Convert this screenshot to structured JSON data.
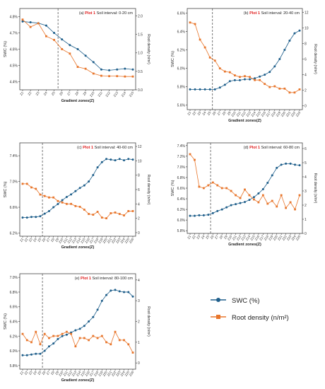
{
  "colors": {
    "swc": "#1f5f8b",
    "root": "#e8762c",
    "plot_label": "#e02020",
    "axis": "#444444",
    "divider": "#555555"
  },
  "legend": {
    "swc_label": "SWC (%)",
    "root_label": "Root density (n/m²)"
  },
  "chart_data": [
    {
      "type": "line",
      "panel": "(a)",
      "plot_word": "Plot 1",
      "interval": "Soil interval: 0-20 cm",
      "xlabel": "Gradient zones(Z)",
      "ylabel": "SWC (%)",
      "y2label": "Root density (n/m²)",
      "categories": [
        "Z1",
        "Z2",
        "Z3",
        "Z4",
        "Z5",
        "Z6",
        "Z7",
        "Z8",
        "Z9",
        "Z10",
        "Z11",
        "Z12",
        "Z13",
        "Z14",
        "Z15"
      ],
      "divider_after": "Z5",
      "ylim": [
        4.35,
        4.85
      ],
      "yticks": [
        4.4,
        4.5,
        4.6,
        4.7,
        4.8
      ],
      "ytick_labels": [
        "4.4%",
        "4.5%",
        "4.6%",
        "4.7%",
        "4.8%"
      ],
      "y2lim": [
        0,
        2.2
      ],
      "y2ticks": [
        0,
        0.5,
        1.0,
        1.5,
        2.0
      ],
      "y2tick_labels": [
        "0.0",
        "0.5",
        "1.0",
        "1.5",
        "2.0"
      ],
      "series": [
        {
          "name": "SWC (%)",
          "axis": "left",
          "values": [
            4.77,
            4.765,
            4.76,
            4.745,
            4.7,
            4.66,
            4.625,
            4.6,
            4.56,
            4.52,
            4.475,
            4.47,
            4.475,
            4.48,
            4.475
          ]
        },
        {
          "name": "Root density (n/m²)",
          "axis": "right",
          "values": [
            1.9,
            1.7,
            1.8,
            1.45,
            1.35,
            1.1,
            0.98,
            0.62,
            0.57,
            0.44,
            0.38,
            0.37,
            0.37,
            0.36,
            0.36
          ]
        }
      ]
    },
    {
      "type": "line",
      "panel": "(b)",
      "plot_word": "Plot 1",
      "interval": "Soil interval: 20-40 cm",
      "xlabel": "Gradient zones(Z)",
      "ylabel": "SWC (%)",
      "y2label": "Root density (n/m²)",
      "categories": [
        "Z1",
        "Z2",
        "Z3",
        "Z4",
        "Z5",
        "Z6",
        "Z7",
        "Z8",
        "Z9",
        "Z10",
        "Z11",
        "Z12",
        "Z13",
        "Z14",
        "Z15",
        "Z16",
        "Z17",
        "Z18",
        "Z19",
        "Z20",
        "Z21",
        "Z22",
        "Z23"
      ],
      "divider_after": "Z5",
      "ylim": [
        5.55,
        6.65
      ],
      "yticks": [
        5.6,
        5.8,
        6.0,
        6.2,
        6.4,
        6.6
      ],
      "ytick_labels": [
        "5.6%",
        "5.8%",
        "6.0%",
        "6.2%",
        "6.4%",
        "6.6%"
      ],
      "y2lim": [
        -0.5,
        12.5
      ],
      "y2ticks": [
        0,
        2,
        4,
        6,
        8,
        10,
        12
      ],
      "y2tick_labels": [
        "0",
        "2",
        "4",
        "6",
        "8",
        "10",
        "12"
      ],
      "series": [
        {
          "name": "SWC (%)",
          "axis": "left",
          "values": [
            5.77,
            5.77,
            5.77,
            5.77,
            5.77,
            5.77,
            5.79,
            5.82,
            5.86,
            5.87,
            5.87,
            5.88,
            5.88,
            5.89,
            5.91,
            5.93,
            5.96,
            6.02,
            6.1,
            6.2,
            6.3,
            6.38,
            6.41
          ]
        },
        {
          "name": "Root density (n/m²)",
          "axis": "right",
          "values": [
            10.7,
            10.5,
            8.5,
            7.5,
            6.2,
            5.8,
            4.8,
            4.4,
            4.3,
            3.9,
            3.7,
            3.8,
            3.7,
            3.3,
            3.3,
            2.8,
            2.4,
            2.5,
            2.2,
            2.2,
            1.7,
            1.7,
            2.1
          ]
        }
      ]
    },
    {
      "type": "line",
      "panel": "(c)",
      "plot_word": "Plot 1",
      "interval": "Soil interval: 40-60 cm",
      "xlabel": "Gradient zones(Z)",
      "ylabel": "SWC (%)",
      "y2label": "Root density (n/m²)",
      "categories": [
        "Z1",
        "Z2",
        "Z3",
        "Z4",
        "Z5",
        "Z6",
        "Z7",
        "Z8",
        "Z9",
        "Z10",
        "Z11",
        "Z12",
        "Z13",
        "Z14",
        "Z15",
        "Z16",
        "Z17",
        "Z18",
        "Z19",
        "Z20",
        "Z21",
        "Z22",
        "Z23",
        "Z24",
        "Z25",
        "Z26"
      ],
      "divider_after": "Z5",
      "ylim": [
        6.15,
        7.6
      ],
      "yticks": [
        6.2,
        6.6,
        7.0,
        7.4
      ],
      "ytick_labels": [
        "6.2%",
        "6.6%",
        "7.0%",
        "7.4%"
      ],
      "y2lim": [
        -0.5,
        12.5
      ],
      "y2ticks": [
        0,
        2,
        4,
        6,
        8,
        10,
        12
      ],
      "y2tick_labels": [
        "0",
        "2",
        "4",
        "6",
        "8",
        "10",
        "12"
      ],
      "series": [
        {
          "name": "SWC (%)",
          "axis": "left",
          "values": [
            6.44,
            6.44,
            6.45,
            6.45,
            6.46,
            6.5,
            6.54,
            6.6,
            6.65,
            6.71,
            6.76,
            6.8,
            6.85,
            6.9,
            6.94,
            7.0,
            7.1,
            7.22,
            7.3,
            7.35,
            7.34,
            7.33,
            7.35,
            7.33,
            7.35,
            7.34
          ]
        },
        {
          "name": "Root density (n/m²)",
          "axis": "right",
          "values": [
            6.8,
            6.8,
            6.3,
            6.1,
            5.3,
            5.1,
            4.9,
            4.9,
            4.4,
            4.2,
            4.0,
            4.0,
            3.7,
            3.6,
            3.2,
            2.6,
            2.5,
            2.9,
            2.1,
            2.0,
            2.7,
            2.8,
            2.6,
            2.4,
            3.0,
            3.0
          ]
        }
      ]
    },
    {
      "type": "line",
      "panel": "(d)",
      "plot_word": "Plot 1",
      "interval": "Soil interval: 60-80 cm",
      "xlabel": "Gradient zones(Z)",
      "ylabel": "SWC (%)",
      "y2label": "Root density (n/m²)",
      "categories": [
        "Z1",
        "Z2",
        "Z3",
        "Z4",
        "Z5",
        "Z6",
        "Z7",
        "Z8",
        "Z9",
        "Z10",
        "Z11",
        "Z12",
        "Z13",
        "Z14",
        "Z15",
        "Z16",
        "Z17",
        "Z18",
        "Z19",
        "Z20",
        "Z21",
        "Z22",
        "Z23",
        "Z24",
        "Z25"
      ],
      "divider_after": "Z5",
      "ylim": [
        5.75,
        7.45
      ],
      "yticks": [
        5.8,
        6.0,
        6.2,
        6.4,
        6.6,
        6.8,
        7.0,
        7.2,
        7.4
      ],
      "ytick_labels": [
        "5.8%",
        "6.0%",
        "6.2%",
        "6.4%",
        "6.6%",
        "6.8%",
        "7.0%",
        "7.2%",
        "7.4%"
      ],
      "y2lim": [
        0,
        6.4
      ],
      "y2ticks": [
        0,
        1,
        2,
        3,
        4,
        5,
        6
      ],
      "y2tick_labels": [
        "0",
        "1",
        "2",
        "3",
        "4",
        "5",
        "6"
      ],
      "series": [
        {
          "name": "SWC (%)",
          "axis": "left",
          "values": [
            6.08,
            6.08,
            6.09,
            6.09,
            6.1,
            6.13,
            6.17,
            6.2,
            6.24,
            6.28,
            6.3,
            6.32,
            6.34,
            6.38,
            6.43,
            6.5,
            6.58,
            6.7,
            6.84,
            6.98,
            7.04,
            7.06,
            7.06,
            7.04,
            7.03
          ]
        },
        {
          "name": "Root density (n/m²)",
          "axis": "right",
          "values": [
            5.6,
            5.2,
            3.3,
            3.2,
            3.4,
            3.6,
            3.4,
            3.2,
            3.2,
            3.0,
            2.7,
            2.5,
            3.1,
            2.7,
            2.4,
            2.2,
            2.7,
            2.1,
            2.3,
            1.9,
            2.7,
            1.8,
            2.2,
            1.7,
            2.7
          ]
        }
      ]
    },
    {
      "type": "line",
      "panel": "(e)",
      "plot_word": "Plot 1",
      "interval": "Soil interval: 80-100 cm",
      "xlabel": "Gradient zones(Z)",
      "ylabel": "SWC (%)",
      "y2label": "Root density (n/m²)",
      "categories": [
        "Z1",
        "Z2",
        "Z3",
        "Z4",
        "Z5",
        "Z6",
        "Z7",
        "Z8",
        "Z9",
        "Z10",
        "Z11",
        "Z12",
        "Z13",
        "Z14",
        "Z15",
        "Z16",
        "Z17",
        "Z18",
        "Z19",
        "Z20",
        "Z21",
        "Z22",
        "Z23",
        "Z24",
        "Z25",
        "Z26"
      ],
      "divider_after": "Z5",
      "ylim": [
        5.75,
        7.05
      ],
      "yticks": [
        5.8,
        6.0,
        6.2,
        6.4,
        6.6,
        6.8,
        7.0
      ],
      "ytick_labels": [
        "5.8%",
        "6.0%",
        "6.2%",
        "6.4%",
        "6.6%",
        "6.8%",
        "7.0%"
      ],
      "y2lim": [
        -0.3,
        4.3
      ],
      "y2ticks": [
        0,
        1,
        2,
        3,
        4
      ],
      "y2tick_labels": [
        "0",
        "1",
        "2",
        "3",
        "4"
      ],
      "series": [
        {
          "name": "SWC (%)",
          "axis": "left",
          "values": [
            5.94,
            5.94,
            5.95,
            5.96,
            5.96,
            6.0,
            6.06,
            6.1,
            6.16,
            6.2,
            6.22,
            6.25,
            6.28,
            6.3,
            6.34,
            6.4,
            6.46,
            6.56,
            6.68,
            6.76,
            6.82,
            6.83,
            6.81,
            6.8,
            6.8,
            6.74
          ]
        },
        {
          "name": "Root density (n/m²)",
          "axis": "right",
          "values": [
            1.4,
            1.1,
            1.0,
            1.5,
            0.9,
            1.4,
            1.2,
            1.3,
            1.3,
            1.4,
            1.5,
            1.4,
            0.8,
            1.2,
            1.2,
            1.1,
            1.3,
            1.2,
            1.3,
            1.0,
            0.9,
            1.5,
            1.1,
            1.1,
            0.9,
            0.5
          ]
        }
      ]
    }
  ]
}
